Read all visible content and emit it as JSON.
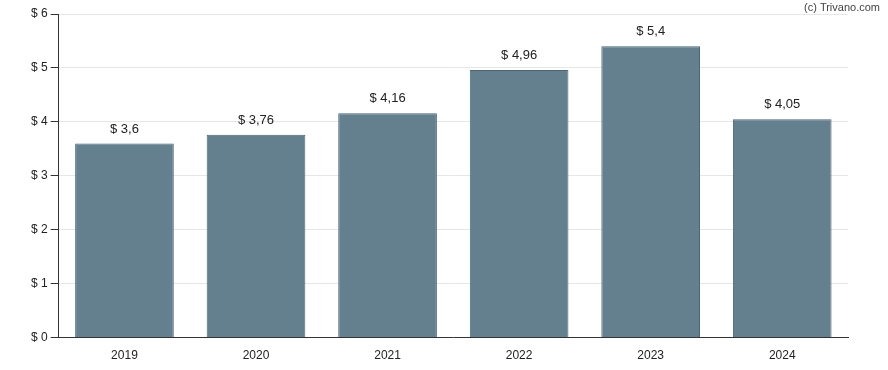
{
  "chart_data": {
    "type": "bar",
    "annotations": [
      "(c) Trivano.com"
    ],
    "categories": [
      "2019",
      "2020",
      "2021",
      "2022",
      "2023",
      "2024"
    ],
    "values": [
      3.6,
      3.76,
      4.16,
      4.96,
      5.4,
      4.05
    ],
    "value_labels": [
      "$ 3,6",
      "$ 3,76",
      "$ 4,16",
      "$ 4,96",
      "$ 5,4",
      "$ 4,05"
    ],
    "color": "#64808f",
    "ylim": [
      0,
      6
    ],
    "yticks": [
      {
        "value": 0,
        "label": "$ 0"
      },
      {
        "value": 1,
        "label": "$ 1"
      },
      {
        "value": 2,
        "label": "$ 2"
      },
      {
        "value": 3,
        "label": "$ 3"
      },
      {
        "value": 4,
        "label": "$ 4"
      },
      {
        "value": 5,
        "label": "$ 5"
      },
      {
        "value": 6,
        "label": "$ 6"
      }
    ],
    "grid": true,
    "data_labels": true
  }
}
